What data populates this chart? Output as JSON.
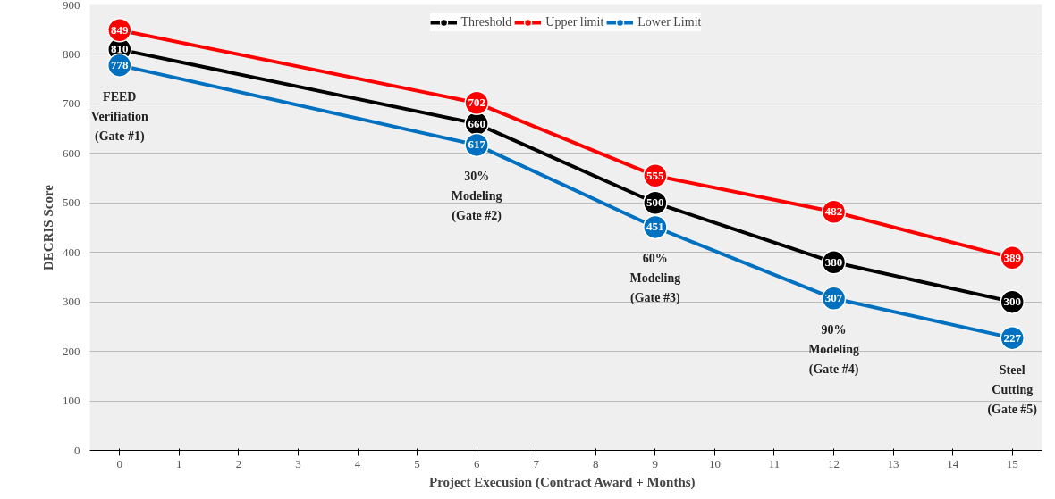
{
  "chart_data": {
    "type": "line",
    "xlabel": "Project Execusion (Contract Award  +  Months)",
    "ylabel": "DECRIS Score",
    "x": [
      0,
      6,
      9,
      12,
      15
    ],
    "series": [
      {
        "name": "Threshold",
        "color": "#000000",
        "values": [
          810,
          660,
          500,
          380,
          300
        ]
      },
      {
        "name": "Upper limit",
        "color": "#ff0000",
        "values": [
          849,
          702,
          555,
          482,
          389
        ]
      },
      {
        "name": "Lower Limit",
        "color": "#0070c0",
        "values": [
          778,
          617,
          451,
          307,
          227
        ]
      }
    ],
    "xlim": [
      -0.5,
      15.5
    ],
    "xticks": [
      0,
      1,
      2,
      3,
      4,
      5,
      6,
      7,
      8,
      9,
      10,
      11,
      12,
      13,
      14,
      15
    ],
    "ylim": [
      0,
      900
    ],
    "yticks": [
      0,
      100,
      200,
      300,
      400,
      500,
      600,
      700,
      800,
      900
    ],
    "grid": "y",
    "legend": "top",
    "marker": "circle",
    "line_style": "solid",
    "data_labels": true,
    "annotations": [
      "FEED\nVerifiation\n(Gate #1)",
      "30%\nModeling\n(Gate #2)",
      "60%\nModeling\n(Gate #3)",
      "90%\nModeling\n(Gate #4)",
      "Steel\nCutting\n(Gate #5)"
    ]
  }
}
